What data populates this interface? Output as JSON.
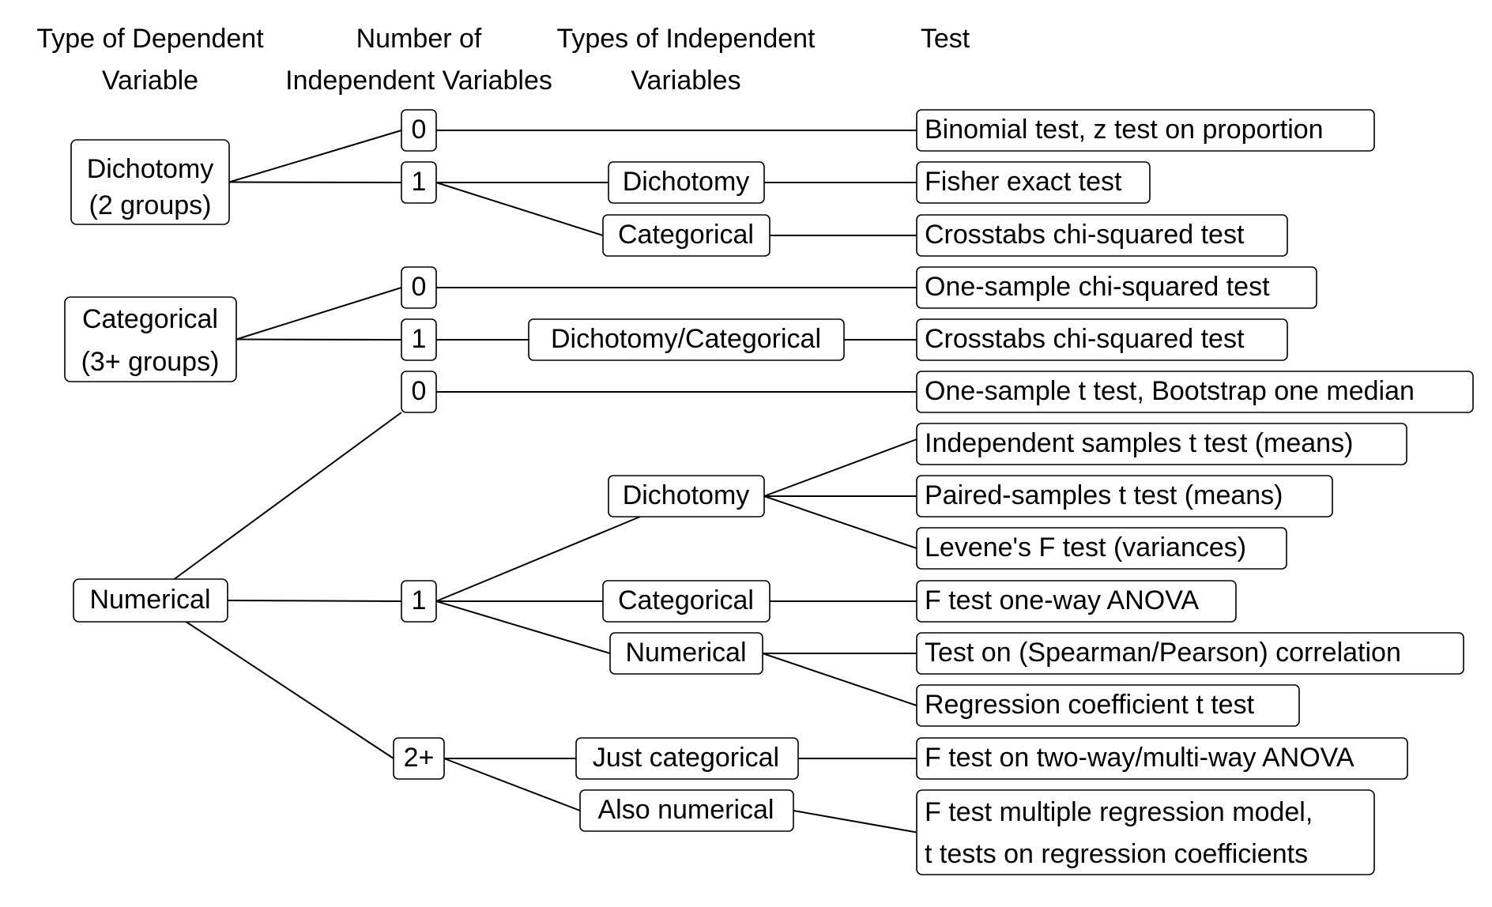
{
  "headers": {
    "dependent": [
      "Type of Dependent",
      "Variable"
    ],
    "number": [
      "Number of",
      "Independent Variables"
    ],
    "types": [
      "Types of Independent",
      "Variables"
    ],
    "test": [
      "Test"
    ]
  },
  "nodes": {
    "dv_dich": [
      "Dichotomy",
      "(2 groups)"
    ],
    "dv_cat": [
      "Categorical",
      "(3+ groups)"
    ],
    "dv_num": [
      "Numerical"
    ],
    "n_d0": [
      "0"
    ],
    "n_d1": [
      "1"
    ],
    "n_c0": [
      "0"
    ],
    "n_c1": [
      "1"
    ],
    "n_n0": [
      "0"
    ],
    "n_n1": [
      "1"
    ],
    "n_n2": [
      "2+"
    ],
    "t_d1_dich": [
      "Dichotomy"
    ],
    "t_d1_cat": [
      "Categorical"
    ],
    "t_c1_dc": [
      "Dichotomy/Categorical"
    ],
    "t_n1_dich": [
      "Dichotomy"
    ],
    "t_n1_cat": [
      "Categorical"
    ],
    "t_n1_num": [
      "Numerical"
    ],
    "t_n2_just": [
      "Just categorical"
    ],
    "t_n2_also": [
      "Also numerical"
    ],
    "r_binomial": [
      "Binomial test, z test on proportion"
    ],
    "r_fisher": [
      "Fisher exact test"
    ],
    "r_crosstabs1": [
      "Crosstabs chi-squared test"
    ],
    "r_onesample_chi": [
      "One-sample chi-squared test"
    ],
    "r_crosstabs2": [
      "Crosstabs chi-squared test"
    ],
    "r_onesample_t": [
      "One-sample t test, Bootstrap one median"
    ],
    "r_indep_t": [
      "Independent samples t test (means)"
    ],
    "r_paired_t": [
      "Paired-samples t test (means)"
    ],
    "r_levene": [
      "Levene's F test (variances)"
    ],
    "r_anova1": [
      "F test one-way ANOVA"
    ],
    "r_corr": [
      "Test on (Spearman/Pearson) correlation"
    ],
    "r_regcoef": [
      "Regression coefficient t test"
    ],
    "r_anova2": [
      "F test on two-way/multi-way ANOVA"
    ],
    "r_multireg": [
      "F test multiple regression model,",
      " t tests on regression coefficients"
    ]
  },
  "edges": [
    [
      "dv_dich",
      "n_d0"
    ],
    [
      "dv_dich",
      "n_d1"
    ],
    [
      "n_d0",
      "r_binomial"
    ],
    [
      "n_d1",
      "t_d1_dich"
    ],
    [
      "n_d1",
      "t_d1_cat"
    ],
    [
      "t_d1_dich",
      "r_fisher"
    ],
    [
      "t_d1_cat",
      "r_crosstabs1"
    ],
    [
      "dv_cat",
      "n_c0"
    ],
    [
      "dv_cat",
      "n_c1"
    ],
    [
      "n_c0",
      "r_onesample_chi"
    ],
    [
      "n_c1",
      "t_c1_dc"
    ],
    [
      "t_c1_dc",
      "r_crosstabs2"
    ],
    [
      "dv_num",
      "n_n0"
    ],
    [
      "dv_num",
      "n_n1"
    ],
    [
      "dv_num",
      "n_n2"
    ],
    [
      "n_n0",
      "r_onesample_t"
    ],
    [
      "n_n1",
      "t_n1_dich"
    ],
    [
      "n_n1",
      "t_n1_cat"
    ],
    [
      "n_n1",
      "t_n1_num"
    ],
    [
      "t_n1_dich",
      "r_indep_t"
    ],
    [
      "t_n1_dich",
      "r_paired_t"
    ],
    [
      "t_n1_dich",
      "r_levene"
    ],
    [
      "t_n1_cat",
      "r_anova1"
    ],
    [
      "t_n1_num",
      "r_corr"
    ],
    [
      "t_n1_num",
      "r_regcoef"
    ],
    [
      "n_n2",
      "t_n2_just"
    ],
    [
      "n_n2",
      "t_n2_also"
    ],
    [
      "t_n2_just",
      "r_anova2"
    ],
    [
      "t_n2_also",
      "r_multireg"
    ]
  ]
}
